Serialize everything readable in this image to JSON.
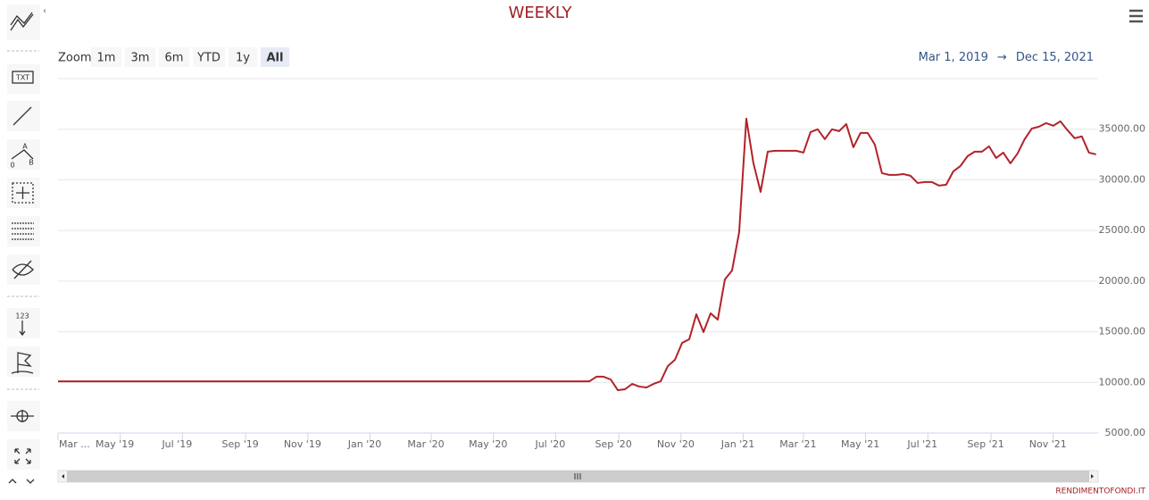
{
  "chart_data": {
    "type": "line",
    "title": "WEEKLY",
    "x": [
      "2019-03-01",
      "2020-08-03",
      "2020-08-10",
      "2020-08-17",
      "2020-08-24",
      "2020-08-31",
      "2020-09-07",
      "2020-09-14",
      "2020-09-21",
      "2020-09-28",
      "2020-10-05",
      "2020-10-12",
      "2020-10-19",
      "2020-10-26",
      "2020-11-02",
      "2020-11-09",
      "2020-11-16",
      "2020-11-23",
      "2020-11-30",
      "2020-12-07",
      "2020-12-14",
      "2020-12-21",
      "2020-12-28",
      "2021-01-04",
      "2021-01-11",
      "2021-01-18",
      "2021-01-25",
      "2021-02-01",
      "2021-02-08",
      "2021-02-15",
      "2021-02-22",
      "2021-03-01",
      "2021-03-08",
      "2021-03-15",
      "2021-03-22",
      "2021-03-29",
      "2021-04-05",
      "2021-04-12",
      "2021-04-19",
      "2021-04-26",
      "2021-05-03",
      "2021-05-10",
      "2021-05-17",
      "2021-05-24",
      "2021-05-31",
      "2021-06-07",
      "2021-06-14",
      "2021-06-21",
      "2021-06-28",
      "2021-07-05",
      "2021-07-12",
      "2021-07-19",
      "2021-07-26",
      "2021-08-02",
      "2021-08-09",
      "2021-08-16",
      "2021-08-23",
      "2021-08-30",
      "2021-09-06",
      "2021-09-13",
      "2021-09-20",
      "2021-09-27",
      "2021-10-04",
      "2021-10-11",
      "2021-10-18",
      "2021-10-25",
      "2021-11-01",
      "2021-11-08",
      "2021-11-15",
      "2021-11-22",
      "2021-11-29",
      "2021-12-06",
      "2021-12-13"
    ],
    "values": [
      10100,
      10100,
      10560,
      10560,
      10290,
      9230,
      9320,
      9850,
      9590,
      9500,
      9850,
      10110,
      11610,
      12230,
      13900,
      14260,
      16730,
      14970,
      16820,
      16200,
      20170,
      21050,
      24840,
      36040,
      31630,
      28810,
      32780,
      32870,
      32870,
      32870,
      32870,
      32690,
      34720,
      34990,
      34020,
      34990,
      34810,
      35510,
      33220,
      34630,
      34630,
      33490,
      30660,
      30490,
      30490,
      30570,
      30400,
      29690,
      29780,
      29780,
      29430,
      29520,
      30840,
      31370,
      32340,
      32780,
      32780,
      33310,
      32160,
      32690,
      31630,
      32600,
      34020,
      35070,
      35250,
      35600,
      35340,
      35780,
      34900,
      34110,
      34290,
      32690,
      32510
    ],
    "color": "#b3222a",
    "xlim": [
      "2019-03-01",
      "2021-12-15"
    ],
    "xticks": [
      {
        "value": "2019-03-01",
        "label": "Mar ..."
      },
      {
        "value": "2019-05-01",
        "label": "May '19"
      },
      {
        "value": "2019-07-01",
        "label": "Jul '19"
      },
      {
        "value": "2019-09-01",
        "label": "Sep '19"
      },
      {
        "value": "2019-11-01",
        "label": "Nov '19"
      },
      {
        "value": "2020-01-01",
        "label": "Jan '20"
      },
      {
        "value": "2020-03-01",
        "label": "Mar '20"
      },
      {
        "value": "2020-05-01",
        "label": "May '20"
      },
      {
        "value": "2020-07-01",
        "label": "Jul '20"
      },
      {
        "value": "2020-09-01",
        "label": "Sep '20"
      },
      {
        "value": "2020-11-01",
        "label": "Nov '20"
      },
      {
        "value": "2021-01-01",
        "label": "Jan '21"
      },
      {
        "value": "2021-03-01",
        "label": "Mar '21"
      },
      {
        "value": "2021-05-01",
        "label": "May '21"
      },
      {
        "value": "2021-07-01",
        "label": "Jul '21"
      },
      {
        "value": "2021-09-01",
        "label": "Sep '21"
      },
      {
        "value": "2021-11-01",
        "label": "Nov '21"
      }
    ],
    "ylim": [
      5000,
      40000
    ],
    "yticks": [
      {
        "value": 5000,
        "label": "5000.00"
      },
      {
        "value": 10000,
        "label": "10000.00"
      },
      {
        "value": 15000,
        "label": "15000.00"
      },
      {
        "value": 20000,
        "label": "20000.00"
      },
      {
        "value": 25000,
        "label": "25000.00"
      },
      {
        "value": 30000,
        "label": "30000.00"
      },
      {
        "value": 35000,
        "label": "35000.00"
      }
    ],
    "grid": true
  },
  "ui": {
    "zoom_label": "Zoom",
    "zoom_buttons": [
      "1m",
      "3m",
      "6m",
      "YTD",
      "1y",
      "All"
    ],
    "selected": 5,
    "range_from": "Mar 1, 2019",
    "range_separator": "→",
    "range_to": "Dec 15, 2021",
    "credit": "RENDIMENTOFONDI.IT",
    "toolbar": {
      "text_tool": "TXT",
      "fib_a": "A",
      "fib_zero": "0",
      "fib_b": "B",
      "label_tool": "123"
    }
  }
}
